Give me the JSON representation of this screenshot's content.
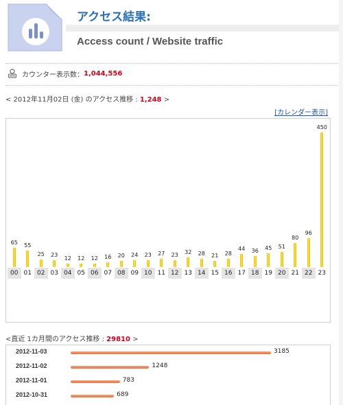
{
  "header": {
    "title_ja": "アクセス結果:",
    "title_en": "Access count / Website traffic"
  },
  "counter": {
    "label": "カウンター表示数：",
    "value": "1,044,556"
  },
  "daily": {
    "prefix": "< 2012年11月02日 (金) のアクセス推移 :",
    "total": "1,248",
    "suffix": " >",
    "calendar_link": "[カレンダー表示]"
  },
  "chart_data": {
    "type": "bar",
    "categories": [
      "00",
      "01",
      "02",
      "03",
      "04",
      "05",
      "06",
      "07",
      "08",
      "09",
      "10",
      "11",
      "12",
      "13",
      "14",
      "15",
      "16",
      "17",
      "18",
      "19",
      "20",
      "21",
      "22",
      "23"
    ],
    "values": [
      65,
      55,
      25,
      23,
      12,
      12,
      12,
      16,
      20,
      24,
      23,
      27,
      23,
      32,
      28,
      21,
      28,
      44,
      36,
      45,
      51,
      80,
      96,
      450
    ],
    "value_labels": [
      "65",
      "55",
      "25",
      "23",
      "12",
      "12",
      "12",
      "16",
      "20",
      "24",
      "23",
      "27",
      "23",
      "32",
      "28",
      "21",
      "28",
      "44",
      "36",
      "45",
      "51",
      "80",
      "96",
      "450"
    ],
    "ylim": [
      0,
      450
    ],
    "bar_color": "#f2c200"
  },
  "monthly": {
    "prefix": "<直近 1カ月間のアクセス推移 :",
    "total": "29810",
    "suffix": " >",
    "rows": [
      {
        "date": "2012-11-03",
        "value": 3185,
        "label": "3185"
      },
      {
        "date": "2012-11-02",
        "value": 1248,
        "label": "1248"
      },
      {
        "date": "2012-11-01",
        "value": 783,
        "label": "783"
      },
      {
        "date": "2012-10-31",
        "value": 689,
        "label": "689"
      }
    ],
    "bar_color": "#e9703e"
  }
}
